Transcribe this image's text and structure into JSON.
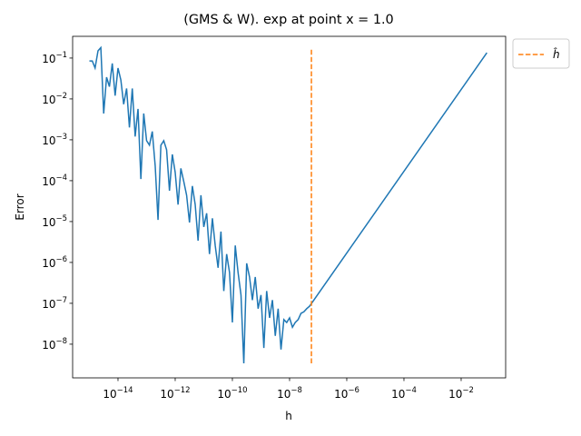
{
  "chart_data": {
    "type": "line",
    "title": "(GMS & W). exp at point x = 1.0",
    "xlabel": "h",
    "ylabel": "Error",
    "xscale": "log",
    "yscale": "log",
    "legend": "outside upper right",
    "xlim": [
      2.59e-16,
      0.36
    ],
    "ylim": [
      1.5e-09,
      0.34
    ],
    "xticks": [
      {
        "value": 1e-14,
        "label": "10−14"
      },
      {
        "value": 1e-12,
        "label": "10−12"
      },
      {
        "value": 1e-10,
        "label": "10−10"
      },
      {
        "value": 1e-08,
        "label": "10−8"
      },
      {
        "value": 1e-06,
        "label": "10−6"
      },
      {
        "value": 0.0001,
        "label": "10−4"
      },
      {
        "value": 0.01,
        "label": "10−2"
      }
    ],
    "yticks": [
      {
        "value": 1e-08,
        "label": "10−8"
      },
      {
        "value": 1e-07,
        "label": "10−7"
      },
      {
        "value": 1e-06,
        "label": "10−6"
      },
      {
        "value": 1e-05,
        "label": "10−5"
      },
      {
        "value": 0.0001,
        "label": "10−4"
      },
      {
        "value": 0.001,
        "label": "10−3"
      },
      {
        "value": 0.01,
        "label": "10−2"
      },
      {
        "value": 0.1,
        "label": "10−1"
      }
    ],
    "series": [
      {
        "color": "#1f77b4",
        "dash": false,
        "x": [
          1e-15,
          1.26e-15,
          1.58e-15,
          2e-15,
          2.51e-15,
          3.16e-15,
          3.98e-15,
          5.01e-15,
          6.31e-15,
          7.94e-15,
          1e-14,
          1.26e-14,
          1.58e-14,
          2e-14,
          2.51e-14,
          3.16e-14,
          3.98e-14,
          5.01e-14,
          6.31e-14,
          7.94e-14,
          1e-13,
          1.26e-13,
          1.58e-13,
          2e-13,
          2.51e-13,
          3.16e-13,
          3.98e-13,
          5.01e-13,
          6.31e-13,
          7.94e-13,
          1e-12,
          1.26e-12,
          1.58e-12,
          2e-12,
          2.51e-12,
          3.16e-12,
          3.98e-12,
          5.01e-12,
          6.31e-12,
          7.94e-12,
          1e-11,
          1.26e-11,
          1.58e-11,
          2e-11,
          2.51e-11,
          3.16e-11,
          3.98e-11,
          5.01e-11,
          6.31e-11,
          7.94e-11,
          1e-10,
          1.26e-10,
          1.58e-10,
          2e-10,
          2.51e-10,
          3.16e-10,
          3.98e-10,
          5.01e-10,
          6.31e-10,
          7.94e-10,
          1e-09,
          1.26e-09,
          1.58e-09,
          2e-09,
          2.51e-09,
          3.16e-09,
          3.98e-09,
          5.01e-09,
          6.31e-09,
          7.94e-09,
          1e-08,
          1.26e-08,
          1.58e-08,
          2e-08,
          2.51e-08,
          3.16e-08,
          3.98e-08,
          5.01e-08,
          1e-07,
          1e-06,
          1e-05,
          0.0001,
          0.001,
          0.01,
          0.0794
        ],
        "values": [
          0.085,
          0.085,
          0.057,
          0.15,
          0.18,
          0.0044,
          0.034,
          0.02,
          0.074,
          0.012,
          0.057,
          0.029,
          0.0074,
          0.018,
          0.002,
          0.018,
          0.0012,
          0.0057,
          0.00011,
          0.0044,
          0.00095,
          0.00074,
          0.0016,
          0.00023,
          1.1e-05,
          0.00074,
          0.00095,
          0.00057,
          5.7e-05,
          0.00044,
          0.00016,
          2.6e-05,
          0.0002,
          9.5e-05,
          4.4e-05,
          9.5e-06,
          7.4e-05,
          2.6e-05,
          3.4e-06,
          4.4e-05,
          7.4e-06,
          1.6e-05,
          1.6e-06,
          1.2e-05,
          2.6e-06,
          7.4e-07,
          5.7e-06,
          2e-07,
          1.6e-06,
          5.7e-07,
          3.4e-08,
          2.6e-06,
          5.7e-07,
          1.6e-07,
          3.4e-09,
          9.5e-07,
          4.4e-07,
          1.2e-07,
          4.4e-07,
          7.4e-08,
          1.6e-07,
          8.1e-09,
          2e-07,
          4.4e-08,
          1.2e-07,
          1.6e-08,
          7.4e-08,
          7.4e-09,
          4e-08,
          3.4e-08,
          4.4e-08,
          2.6e-08,
          3.4e-08,
          4e-08,
          5.7e-08,
          6.2e-08,
          7.4e-08,
          8.5e-08,
          1.7e-07,
          1.7e-06,
          1.7e-05,
          0.00017,
          0.0017,
          0.017,
          0.135
        ]
      },
      {
        "name": "ĥ",
        "color": "#ff7f0e",
        "dash": true,
        "x": [
          5.8e-08,
          5.8e-08
        ],
        "values": [
          3.4e-09,
          0.18
        ]
      }
    ]
  }
}
